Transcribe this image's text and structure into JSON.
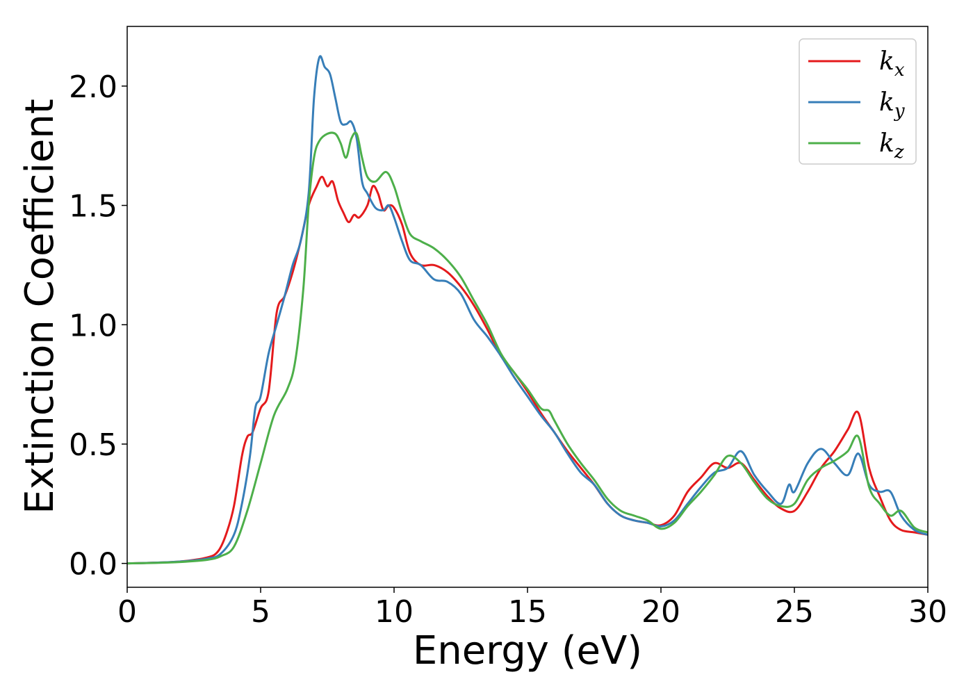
{
  "chart_data": {
    "type": "line",
    "xlabel": "Energy (eV)",
    "ylabel": "Extinction Coefficient",
    "xlim": [
      0,
      30
    ],
    "ylim": [
      -0.1,
      2.25
    ],
    "xticks": [
      0,
      5,
      10,
      15,
      20,
      25,
      30
    ],
    "xtick_labels": [
      "0",
      "5",
      "10",
      "15",
      "20",
      "25",
      "30"
    ],
    "yticks": [
      0.0,
      0.5,
      1.0,
      1.5,
      2.0
    ],
    "ytick_labels": [
      "0.0",
      "0.5",
      "1.0",
      "1.5",
      "2.0"
    ],
    "grid": false,
    "legend_position": "top-right",
    "series": [
      {
        "name": "k",
        "subscript": "x",
        "color": "#e41a1c",
        "points": [
          [
            0,
            0.0
          ],
          [
            1,
            0.003
          ],
          [
            2,
            0.008
          ],
          [
            3,
            0.025
          ],
          [
            3.4,
            0.05
          ],
          [
            3.7,
            0.12
          ],
          [
            4,
            0.24
          ],
          [
            4.3,
            0.45
          ],
          [
            4.5,
            0.53
          ],
          [
            4.7,
            0.55
          ],
          [
            5,
            0.65
          ],
          [
            5.3,
            0.72
          ],
          [
            5.6,
            1.05
          ],
          [
            5.9,
            1.12
          ],
          [
            6.2,
            1.22
          ],
          [
            6.5,
            1.35
          ],
          [
            6.8,
            1.5
          ],
          [
            7.1,
            1.58
          ],
          [
            7.3,
            1.62
          ],
          [
            7.5,
            1.58
          ],
          [
            7.7,
            1.6
          ],
          [
            7.9,
            1.52
          ],
          [
            8.1,
            1.47
          ],
          [
            8.3,
            1.43
          ],
          [
            8.5,
            1.46
          ],
          [
            8.7,
            1.45
          ],
          [
            9,
            1.5
          ],
          [
            9.2,
            1.58
          ],
          [
            9.4,
            1.55
          ],
          [
            9.6,
            1.48
          ],
          [
            9.8,
            1.5
          ],
          [
            10,
            1.49
          ],
          [
            10.3,
            1.42
          ],
          [
            10.6,
            1.3
          ],
          [
            11,
            1.25
          ],
          [
            11.5,
            1.25
          ],
          [
            12,
            1.22
          ],
          [
            12.5,
            1.16
          ],
          [
            13,
            1.08
          ],
          [
            13.5,
            0.98
          ],
          [
            14,
            0.87
          ],
          [
            14.5,
            0.8
          ],
          [
            15,
            0.72
          ],
          [
            15.5,
            0.63
          ],
          [
            16,
            0.55
          ],
          [
            16.5,
            0.47
          ],
          [
            17,
            0.4
          ],
          [
            17.5,
            0.33
          ],
          [
            18,
            0.25
          ],
          [
            18.5,
            0.2
          ],
          [
            19,
            0.18
          ],
          [
            19.5,
            0.17
          ],
          [
            20,
            0.16
          ],
          [
            20.5,
            0.2
          ],
          [
            21,
            0.3
          ],
          [
            21.5,
            0.36
          ],
          [
            22,
            0.42
          ],
          [
            22.5,
            0.4
          ],
          [
            23,
            0.42
          ],
          [
            23.5,
            0.35
          ],
          [
            24,
            0.28
          ],
          [
            24.5,
            0.23
          ],
          [
            25,
            0.22
          ],
          [
            25.5,
            0.3
          ],
          [
            26,
            0.4
          ],
          [
            26.5,
            0.47
          ],
          [
            27,
            0.56
          ],
          [
            27.4,
            0.63
          ],
          [
            27.8,
            0.4
          ],
          [
            28.2,
            0.28
          ],
          [
            28.6,
            0.18
          ],
          [
            29,
            0.14
          ],
          [
            29.5,
            0.13
          ],
          [
            30,
            0.12
          ]
        ]
      },
      {
        "name": "k",
        "subscript": "y",
        "color": "#377eb8",
        "points": [
          [
            0,
            0.0
          ],
          [
            1,
            0.003
          ],
          [
            2,
            0.008
          ],
          [
            3,
            0.02
          ],
          [
            3.5,
            0.04
          ],
          [
            4,
            0.12
          ],
          [
            4.3,
            0.25
          ],
          [
            4.6,
            0.45
          ],
          [
            4.8,
            0.65
          ],
          [
            5,
            0.7
          ],
          [
            5.3,
            0.88
          ],
          [
            5.6,
            1.0
          ],
          [
            5.9,
            1.12
          ],
          [
            6.2,
            1.25
          ],
          [
            6.5,
            1.35
          ],
          [
            6.8,
            1.55
          ],
          [
            7,
            1.95
          ],
          [
            7.2,
            2.12
          ],
          [
            7.4,
            2.08
          ],
          [
            7.6,
            2.05
          ],
          [
            7.8,
            1.95
          ],
          [
            8,
            1.85
          ],
          [
            8.2,
            1.84
          ],
          [
            8.4,
            1.85
          ],
          [
            8.6,
            1.78
          ],
          [
            8.8,
            1.6
          ],
          [
            9,
            1.55
          ],
          [
            9.3,
            1.49
          ],
          [
            9.6,
            1.48
          ],
          [
            9.8,
            1.5
          ],
          [
            10,
            1.45
          ],
          [
            10.3,
            1.35
          ],
          [
            10.6,
            1.27
          ],
          [
            11,
            1.25
          ],
          [
            11.5,
            1.19
          ],
          [
            12,
            1.18
          ],
          [
            12.5,
            1.13
          ],
          [
            13,
            1.02
          ],
          [
            13.5,
            0.95
          ],
          [
            14,
            0.87
          ],
          [
            14.5,
            0.78
          ],
          [
            15,
            0.7
          ],
          [
            15.5,
            0.62
          ],
          [
            16,
            0.55
          ],
          [
            16.5,
            0.46
          ],
          [
            17,
            0.38
          ],
          [
            17.5,
            0.33
          ],
          [
            18,
            0.25
          ],
          [
            18.5,
            0.2
          ],
          [
            19,
            0.18
          ],
          [
            19.5,
            0.17
          ],
          [
            20,
            0.155
          ],
          [
            20.5,
            0.18
          ],
          [
            21,
            0.25
          ],
          [
            21.5,
            0.32
          ],
          [
            22,
            0.38
          ],
          [
            22.5,
            0.4
          ],
          [
            23,
            0.47
          ],
          [
            23.5,
            0.37
          ],
          [
            24,
            0.3
          ],
          [
            24.5,
            0.25
          ],
          [
            24.8,
            0.33
          ],
          [
            25,
            0.3
          ],
          [
            25.5,
            0.42
          ],
          [
            26,
            0.48
          ],
          [
            26.5,
            0.42
          ],
          [
            27,
            0.37
          ],
          [
            27.4,
            0.46
          ],
          [
            27.8,
            0.33
          ],
          [
            28.2,
            0.3
          ],
          [
            28.6,
            0.3
          ],
          [
            29,
            0.2
          ],
          [
            29.5,
            0.14
          ],
          [
            30,
            0.12
          ]
        ]
      },
      {
        "name": "k",
        "subscript": "z",
        "color": "#4daf4a",
        "points": [
          [
            0,
            0.0
          ],
          [
            1,
            0.002
          ],
          [
            2,
            0.006
          ],
          [
            3,
            0.015
          ],
          [
            3.5,
            0.03
          ],
          [
            4,
            0.07
          ],
          [
            4.5,
            0.22
          ],
          [
            5,
            0.42
          ],
          [
            5.5,
            0.62
          ],
          [
            6,
            0.73
          ],
          [
            6.3,
            0.85
          ],
          [
            6.6,
            1.15
          ],
          [
            6.8,
            1.5
          ],
          [
            7,
            1.7
          ],
          [
            7.2,
            1.77
          ],
          [
            7.5,
            1.8
          ],
          [
            7.8,
            1.8
          ],
          [
            8,
            1.76
          ],
          [
            8.2,
            1.7
          ],
          [
            8.4,
            1.78
          ],
          [
            8.6,
            1.8
          ],
          [
            8.8,
            1.7
          ],
          [
            9,
            1.62
          ],
          [
            9.3,
            1.6
          ],
          [
            9.7,
            1.64
          ],
          [
            10,
            1.58
          ],
          [
            10.3,
            1.47
          ],
          [
            10.6,
            1.38
          ],
          [
            11,
            1.35
          ],
          [
            11.5,
            1.32
          ],
          [
            12,
            1.27
          ],
          [
            12.5,
            1.2
          ],
          [
            13,
            1.1
          ],
          [
            13.5,
            1.0
          ],
          [
            14,
            0.88
          ],
          [
            14.5,
            0.8
          ],
          [
            15,
            0.73
          ],
          [
            15.5,
            0.65
          ],
          [
            15.8,
            0.64
          ],
          [
            16,
            0.6
          ],
          [
            16.5,
            0.5
          ],
          [
            17,
            0.42
          ],
          [
            17.5,
            0.35
          ],
          [
            18,
            0.27
          ],
          [
            18.5,
            0.22
          ],
          [
            19,
            0.2
          ],
          [
            19.5,
            0.18
          ],
          [
            20,
            0.145
          ],
          [
            20.5,
            0.17
          ],
          [
            21,
            0.24
          ],
          [
            21.5,
            0.3
          ],
          [
            22,
            0.37
          ],
          [
            22.5,
            0.45
          ],
          [
            23,
            0.42
          ],
          [
            23.5,
            0.34
          ],
          [
            24,
            0.27
          ],
          [
            24.5,
            0.24
          ],
          [
            25,
            0.25
          ],
          [
            25.5,
            0.35
          ],
          [
            26,
            0.4
          ],
          [
            26.5,
            0.43
          ],
          [
            27,
            0.47
          ],
          [
            27.4,
            0.53
          ],
          [
            27.8,
            0.32
          ],
          [
            28.2,
            0.25
          ],
          [
            28.6,
            0.2
          ],
          [
            29,
            0.22
          ],
          [
            29.5,
            0.15
          ],
          [
            30,
            0.13
          ]
        ]
      }
    ]
  }
}
